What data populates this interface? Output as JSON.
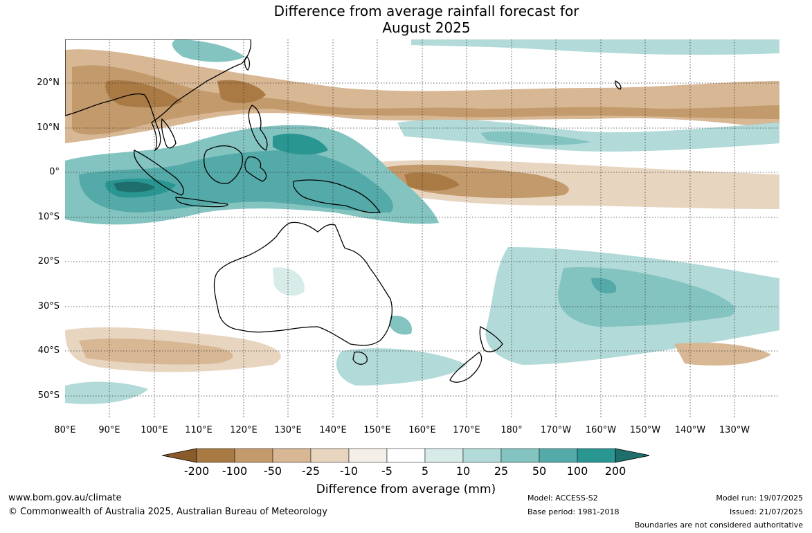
{
  "title": {
    "line1": "Difference from average rainfall forecast for",
    "line2": "August 2025"
  },
  "map": {
    "lat_labels": [
      "20°N",
      "10°N",
      "0°",
      "10°S",
      "20°S",
      "30°S",
      "40°S",
      "50°S"
    ],
    "lon_labels": [
      "80°E",
      "90°E",
      "100°E",
      "110°E",
      "120°E",
      "130°E",
      "140°E",
      "150°E",
      "160°E",
      "170°E",
      "180°",
      "170°W",
      "160°W",
      "150°W",
      "140°W",
      "130°W"
    ],
    "gridlines": "dotted"
  },
  "colorbar": {
    "ticks": [
      "-200",
      "-100",
      "-50",
      "-25",
      "-10",
      "-5",
      "5",
      "10",
      "25",
      "50",
      "100",
      "200"
    ],
    "colors": [
      "#8a5a2a",
      "#a97a44",
      "#c39a6c",
      "#d8b794",
      "#e8d5c0",
      "#f4efe8",
      "#ffffff",
      "#d7ebe9",
      "#b2dad8",
      "#83c3c0",
      "#54aaa8",
      "#2a9692",
      "#1e6f6c"
    ],
    "label": "Difference from average (mm)"
  },
  "footer": {
    "url": "www.bom.gov.au/climate",
    "copyright": "© Commonwealth of Australia 2025, Australian Bureau of Meteorology",
    "model": "Model: ACCESS-S2",
    "base_period": "Base period: 1981-2018",
    "model_run": "Model run: 19/07/2025",
    "issued": "Issued: 21/07/2025",
    "disclaimer": "Boundaries are not considered authoritative"
  }
}
